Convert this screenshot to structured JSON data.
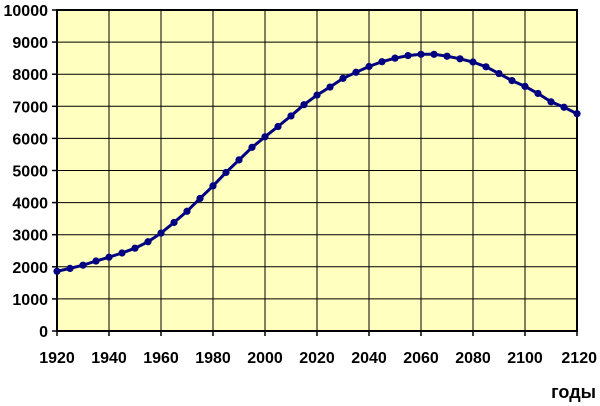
{
  "chart_data": {
    "type": "line",
    "title": "",
    "xlabel": "годы",
    "ylabel": "",
    "xlim": [
      1920,
      2120
    ],
    "ylim": [
      0,
      10000
    ],
    "x_ticks": [
      1920,
      1940,
      1960,
      1980,
      2000,
      2020,
      2040,
      2060,
      2080,
      2100,
      2120
    ],
    "y_ticks": [
      0,
      1000,
      2000,
      3000,
      4000,
      5000,
      6000,
      7000,
      8000,
      9000,
      10000
    ],
    "grid": true,
    "legend": "none",
    "plot_background": "#FFFFC0",
    "series_color": "#000080",
    "series": [
      {
        "x": [
          1920,
          1925,
          1930,
          1935,
          1940,
          1945,
          1950,
          1955,
          1960,
          1965,
          1970,
          1975,
          1980,
          1985,
          1990,
          1995,
          2000,
          2005,
          2010,
          2015,
          2020,
          2025,
          2030,
          2035,
          2040,
          2045,
          2050,
          2055,
          2060,
          2065,
          2070,
          2075,
          2080,
          2085,
          2090,
          2095,
          2100,
          2105,
          2110,
          2115,
          2120
        ],
        "y": [
          1860,
          1950,
          2050,
          2180,
          2300,
          2430,
          2580,
          2780,
          3050,
          3380,
          3730,
          4130,
          4520,
          4940,
          5330,
          5720,
          6050,
          6370,
          6700,
          7050,
          7350,
          7600,
          7870,
          8060,
          8240,
          8390,
          8500,
          8580,
          8620,
          8620,
          8560,
          8480,
          8380,
          8230,
          8020,
          7800,
          7620,
          7400,
          7140,
          6970,
          6770
        ]
      }
    ]
  }
}
